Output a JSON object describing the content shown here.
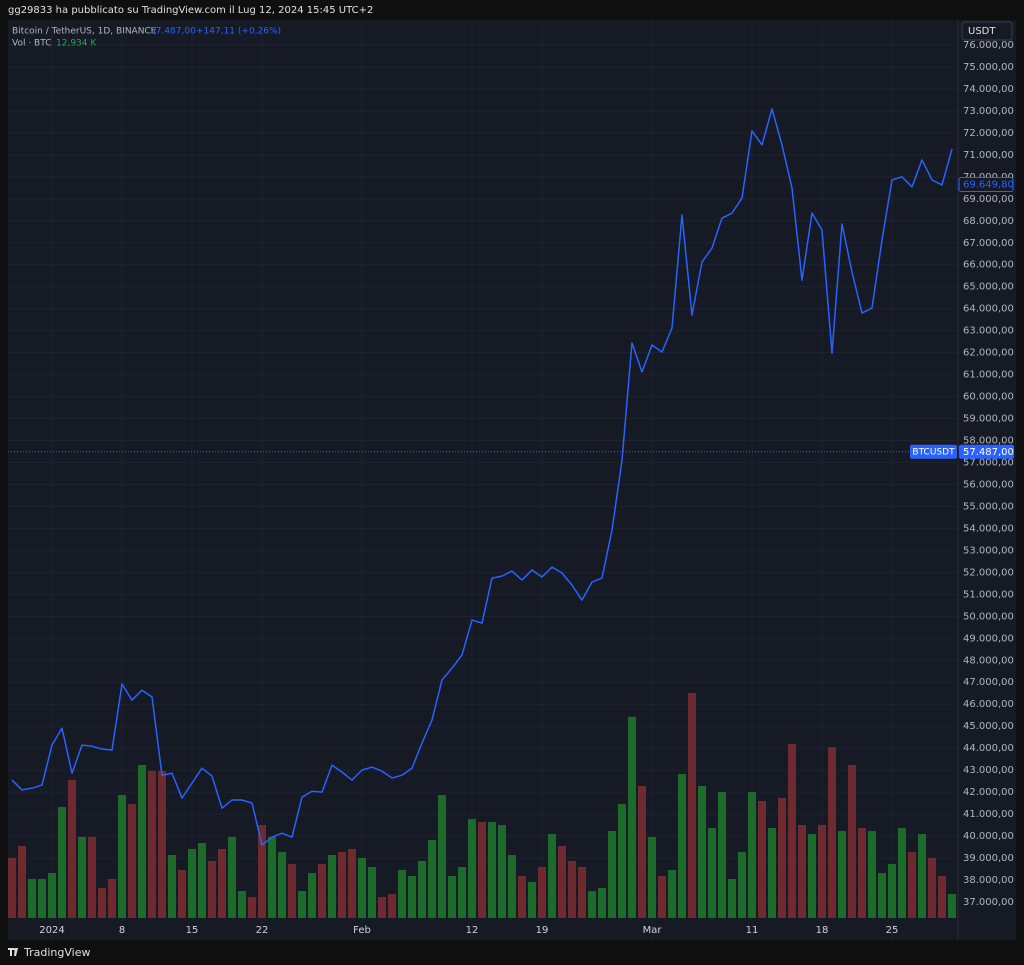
{
  "header": {
    "publisher": "gg29833 ha pubblicato su TradingView.com il Lug 12, 2024 15:45 UTC+2"
  },
  "legend": {
    "symbol": "Bitcoin / TetherUS, 1D, BINANCE",
    "change": "+147,11 (+0,26%)",
    "volume_value": "12,934 K"
  },
  "footer": {
    "brand": "TradingView"
  },
  "chart_data": {
    "type": "line",
    "y_unit": "USDT",
    "categories": [
      null,
      null,
      null,
      null,
      "2024",
      null,
      null,
      null,
      null,
      null,
      null,
      "8",
      null,
      null,
      null,
      null,
      null,
      null,
      "15",
      null,
      null,
      null,
      null,
      null,
      null,
      "22",
      null,
      null,
      null,
      null,
      null,
      null,
      null,
      null,
      null,
      "Feb",
      null,
      null,
      null,
      null,
      null,
      null,
      null,
      null,
      null,
      null,
      "12",
      null,
      null,
      null,
      null,
      null,
      null,
      "19",
      null,
      null,
      null,
      null,
      null,
      null,
      null,
      null,
      null,
      null,
      "Mar",
      null,
      null,
      null,
      null,
      null,
      null,
      null,
      null,
      null,
      "11",
      null,
      null,
      null,
      null,
      null,
      null,
      "18",
      null,
      null,
      null,
      null,
      null,
      null,
      "25",
      null,
      null,
      null,
      null,
      null,
      null
    ],
    "series": [
      {
        "name": "BTCUSDT",
        "color": "#2962ff",
        "values": [
          42550,
          42100,
          42180,
          42320,
          44140,
          44910,
          42860,
          44140,
          44090,
          43960,
          43910,
          46920,
          46190,
          46640,
          46330,
          42770,
          42860,
          41730,
          42410,
          43090,
          42730,
          41270,
          41640,
          41640,
          41500,
          39590,
          39950,
          40130,
          39950,
          41770,
          42040,
          42000,
          43230,
          42910,
          42550,
          43000,
          43140,
          42950,
          42640,
          42770,
          43090,
          44230,
          45280,
          47100,
          47640,
          48240,
          49830,
          49690,
          51740,
          51830,
          52060,
          51650,
          52110,
          51790,
          52240,
          51970,
          51420,
          50740,
          51560,
          51740,
          53920,
          57110,
          62440,
          61120,
          62350,
          62030,
          63120,
          68260,
          63710,
          66120,
          66760,
          68120,
          68350,
          69040,
          72090,
          71450,
          73090,
          71450,
          69490,
          65300,
          68350,
          67580,
          61980,
          67850,
          65670,
          63800,
          64030,
          67120,
          69860,
          70000,
          69540,
          70770,
          69860,
          69630,
          71270
        ]
      }
    ],
    "volume": {
      "name": "Vol · BTC",
      "up_color": "#1c6b2b",
      "down_color": "#6e2a2e",
      "values": [
        20,
        24,
        13,
        13,
        15,
        37,
        46,
        27,
        27,
        10,
        13,
        41,
        38,
        51,
        49,
        49,
        21,
        16,
        23,
        25,
        19,
        23,
        27,
        9,
        7,
        31,
        27,
        22,
        18,
        9,
        15,
        18,
        21,
        22,
        23,
        20,
        17,
        7,
        8,
        16,
        14,
        19,
        26,
        41,
        14,
        17,
        33,
        32,
        32,
        31,
        21,
        14,
        12,
        17,
        28,
        24,
        19,
        17,
        9,
        10,
        29,
        38,
        67,
        44,
        27,
        14,
        16,
        48,
        75,
        44,
        30,
        42,
        13,
        22,
        42,
        39,
        30,
        40,
        58,
        31,
        28,
        31,
        57,
        29,
        51,
        30,
        29,
        15,
        18,
        30,
        22,
        28,
        20,
        14,
        8
      ]
    },
    "price_marker": {
      "name": "BTCUSDT",
      "value": 57487,
      "label": "57.487,00"
    },
    "last_value": {
      "value": 69649.8,
      "label": "69.649,80"
    },
    "ylim": [
      35270,
      77138
    ],
    "yticks": [
      {
        "value": 37000,
        "label": "37.000,00"
      },
      {
        "value": 38000,
        "label": "38.000,00"
      },
      {
        "value": 39000,
        "label": "39.000,00"
      },
      {
        "value": 40000,
        "label": "40.000,00"
      },
      {
        "value": 41000,
        "label": "41.000,00"
      },
      {
        "value": 42000,
        "label": "42.000,00"
      },
      {
        "value": 43000,
        "label": "43.000,00"
      },
      {
        "value": 44000,
        "label": "44.000,00"
      },
      {
        "value": 45000,
        "label": "45.000,00"
      },
      {
        "value": 46000,
        "label": "46.000,00"
      },
      {
        "value": 47000,
        "label": "47.000,00"
      },
      {
        "value": 48000,
        "label": "48.000,00"
      },
      {
        "value": 49000,
        "label": "49.000,00"
      },
      {
        "value": 50000,
        "label": "50.000,00"
      },
      {
        "value": 51000,
        "label": "51.000,00"
      },
      {
        "value": 52000,
        "label": "52.000,00"
      },
      {
        "value": 53000,
        "label": "53.000,00"
      },
      {
        "value": 54000,
        "label": "54.000,00"
      },
      {
        "value": 55000,
        "label": "55.000,00"
      },
      {
        "value": 56000,
        "label": "56.000,00"
      },
      {
        "value": 57000,
        "label": "57.000,00"
      },
      {
        "value": 58000,
        "label": "58.000,00"
      },
      {
        "value": 59000,
        "label": "59.000,00"
      },
      {
        "value": 60000,
        "label": "60.000,00"
      },
      {
        "value": 61000,
        "label": "61.000,00"
      },
      {
        "value": 62000,
        "label": "62.000,00"
      },
      {
        "value": 63000,
        "label": "63.000,00"
      },
      {
        "value": 64000,
        "label": "64.000,00"
      },
      {
        "value": 65000,
        "label": "65.000,00"
      },
      {
        "value": 66000,
        "label": "66.000,00"
      },
      {
        "value": 67000,
        "label": "67.000,00"
      },
      {
        "value": 68000,
        "label": "68.000,00"
      },
      {
        "value": 69000,
        "label": "69.000,00"
      },
      {
        "value": 70000,
        "label": "70.000,00"
      },
      {
        "value": 71000,
        "label": "71.000,00"
      },
      {
        "value": 72000,
        "label": "72.000,00"
      },
      {
        "value": 73000,
        "label": "73.000,00"
      },
      {
        "value": 74000,
        "label": "74.000,00"
      },
      {
        "value": 75000,
        "label": "75.000,00"
      },
      {
        "value": 76000,
        "label": "76.000,00"
      }
    ],
    "grid": true
  }
}
